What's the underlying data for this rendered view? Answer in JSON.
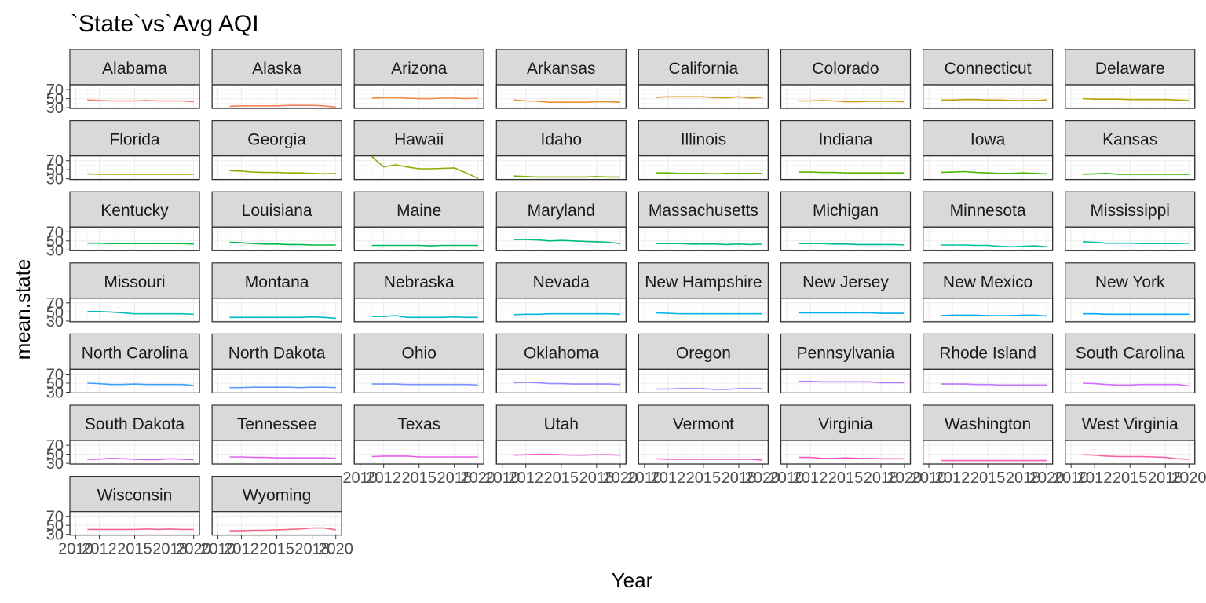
{
  "chart_data": {
    "type": "line",
    "title": "`State`vs`Avg AQI",
    "xlabel": "Year",
    "ylabel": "mean.state",
    "facet_layout": "8 columns, wrapped",
    "x_ticks": [
      2010,
      2012,
      2015,
      2018,
      2020
    ],
    "x_tick_labels": [
      "2010",
      "2012",
      "2015",
      "2018",
      "2020"
    ],
    "y_ticks": [
      30,
      50,
      70
    ],
    "y_tick_labels": [
      "30",
      "50",
      "70"
    ],
    "xlim": [
      2010,
      2020
    ],
    "ylim": [
      30,
      79
    ],
    "grid": true,
    "legend": "none",
    "x": [
      2011,
      2012,
      2013,
      2014,
      2015,
      2016,
      2017,
      2018,
      2019,
      2020
    ],
    "series": [
      {
        "name": "Alabama",
        "color": "#F8766D",
        "values": [
          47,
          46,
          45,
          45,
          45,
          46,
          45,
          45,
          45,
          43
        ]
      },
      {
        "name": "Alaska",
        "color": "#F57F5A",
        "values": [
          33,
          34,
          34,
          34,
          34,
          35,
          35,
          35,
          34,
          31
        ]
      },
      {
        "name": "Arizona",
        "color": "#EE8845",
        "values": [
          51,
          52,
          52,
          51,
          50,
          50,
          51,
          51,
          50,
          51
        ]
      },
      {
        "name": "Arkansas",
        "color": "#E58F2F",
        "values": [
          47,
          45,
          44,
          42,
          42,
          42,
          42,
          43,
          43,
          42
        ]
      },
      {
        "name": "California",
        "color": "#DB951F",
        "values": [
          53,
          54,
          54,
          54,
          54,
          52,
          52,
          54,
          51,
          53
        ]
      },
      {
        "name": "Colorado",
        "color": "#CF9B12",
        "values": [
          45,
          45,
          46,
          45,
          43,
          43,
          44,
          44,
          44,
          43
        ]
      },
      {
        "name": "Connecticut",
        "color": "#C3A00A",
        "values": [
          47,
          47,
          48,
          48,
          47,
          47,
          46,
          46,
          46,
          47
        ]
      },
      {
        "name": "Delaware",
        "color": "#B6A400",
        "values": [
          50,
          49,
          49,
          49,
          48,
          48,
          48,
          48,
          47,
          46
        ]
      },
      {
        "name": "Florida",
        "color": "#A8A800",
        "values": [
          41,
          40,
          40,
          40,
          40,
          40,
          40,
          40,
          40,
          40
        ]
      },
      {
        "name": "Georgia",
        "color": "#9AAB00",
        "values": [
          48,
          47,
          45,
          44,
          44,
          43,
          43,
          42,
          41,
          42
        ]
      },
      {
        "name": "Hawaii",
        "color": "#8BAE00",
        "values": [
          79,
          56,
          61,
          56,
          52,
          52,
          53,
          54,
          43,
          31
        ]
      },
      {
        "name": "Idaho",
        "color": "#7BB100",
        "values": [
          36,
          35,
          34,
          34,
          34,
          34,
          34,
          35,
          34,
          34
        ]
      },
      {
        "name": "Illinois",
        "color": "#6AB300",
        "values": [
          43,
          43,
          42,
          42,
          42,
          41,
          42,
          42,
          42,
          42
        ]
      },
      {
        "name": "Indiana",
        "color": "#58B500",
        "values": [
          45,
          45,
          44,
          44,
          43,
          43,
          43,
          43,
          43,
          43
        ]
      },
      {
        "name": "Iowa",
        "color": "#45B700",
        "values": [
          44,
          45,
          46,
          44,
          43,
          42,
          42,
          43,
          42,
          41
        ]
      },
      {
        "name": "Kansas",
        "color": "#2DB900",
        "values": [
          40,
          41,
          42,
          40,
          40,
          40,
          40,
          40,
          40,
          40
        ]
      },
      {
        "name": "Kentucky",
        "color": "#00BA38",
        "values": [
          45,
          45,
          44,
          44,
          44,
          44,
          44,
          44,
          44,
          43
        ]
      },
      {
        "name": "Louisiana",
        "color": "#00BB4E",
        "values": [
          47,
          46,
          44,
          43,
          43,
          42,
          42,
          41,
          41,
          41
        ]
      },
      {
        "name": "Maine",
        "color": "#00BC61",
        "values": [
          40,
          40,
          40,
          40,
          40,
          39,
          40,
          40,
          40,
          40
        ]
      },
      {
        "name": "Maryland",
        "color": "#00BD72",
        "values": [
          53,
          53,
          52,
          50,
          51,
          50,
          49,
          48,
          47,
          44
        ]
      },
      {
        "name": "Massachusetts",
        "color": "#00BE82",
        "values": [
          44,
          44,
          44,
          43,
          43,
          43,
          42,
          43,
          42,
          43
        ]
      },
      {
        "name": "Michigan",
        "color": "#00BF91",
        "values": [
          44,
          44,
          44,
          43,
          43,
          42,
          42,
          42,
          42,
          41
        ]
      },
      {
        "name": "Minnesota",
        "color": "#00C09F",
        "values": [
          41,
          41,
          41,
          40,
          40,
          38,
          37,
          38,
          39,
          37
        ]
      },
      {
        "name": "Mississippi",
        "color": "#00C0AC",
        "values": [
          48,
          47,
          45,
          45,
          45,
          44,
          44,
          44,
          44,
          45
        ]
      },
      {
        "name": "Missouri",
        "color": "#00BFB9",
        "values": [
          51,
          51,
          50,
          48,
          46,
          46,
          46,
          46,
          46,
          45
        ]
      },
      {
        "name": "Montana",
        "color": "#00BDC5",
        "values": [
          38,
          38,
          38,
          38,
          38,
          38,
          38,
          39,
          38,
          36
        ]
      },
      {
        "name": "Nebraska",
        "color": "#00BBD1",
        "values": [
          40,
          40,
          42,
          38,
          38,
          38,
          38,
          39,
          38,
          38
        ]
      },
      {
        "name": "Nevada",
        "color": "#00B8DC",
        "values": [
          44,
          45,
          45,
          46,
          46,
          46,
          46,
          46,
          46,
          45
        ]
      },
      {
        "name": "New Hampshire",
        "color": "#00B4E6",
        "values": [
          48,
          47,
          46,
          46,
          46,
          46,
          46,
          46,
          46,
          46
        ]
      },
      {
        "name": "New Jersey",
        "color": "#00B0F0",
        "values": [
          48,
          48,
          48,
          48,
          48,
          48,
          48,
          47,
          47,
          47
        ]
      },
      {
        "name": "New Mexico",
        "color": "#00ABF8",
        "values": [
          42,
          43,
          43,
          43,
          42,
          42,
          42,
          43,
          43,
          41
        ]
      },
      {
        "name": "New York",
        "color": "#00A5FF",
        "values": [
          46,
          46,
          45,
          45,
          45,
          45,
          45,
          45,
          45,
          45
        ]
      },
      {
        "name": "North Carolina",
        "color": "#3FA0FF",
        "values": [
          50,
          49,
          47,
          47,
          48,
          47,
          47,
          47,
          47,
          45
        ]
      },
      {
        "name": "North Dakota",
        "color": "#5F9AFF",
        "values": [
          40,
          40,
          41,
          41,
          41,
          41,
          40,
          41,
          41,
          40
        ]
      },
      {
        "name": "Ohio",
        "color": "#7A93FF",
        "values": [
          48,
          48,
          48,
          47,
          47,
          47,
          47,
          47,
          47,
          46
        ]
      },
      {
        "name": "Oklahoma",
        "color": "#918CFF",
        "values": [
          51,
          52,
          51,
          49,
          49,
          48,
          48,
          48,
          48,
          47
        ]
      },
      {
        "name": "Oregon",
        "color": "#A485FF",
        "values": [
          37,
          37,
          38,
          38,
          38,
          36,
          36,
          38,
          38,
          38
        ]
      },
      {
        "name": "Pennsylvania",
        "color": "#B47DFF",
        "values": [
          54,
          54,
          53,
          53,
          53,
          53,
          53,
          51,
          51,
          51
        ]
      },
      {
        "name": "Rhode Island",
        "color": "#C276FF",
        "values": [
          48,
          48,
          48,
          47,
          47,
          46,
          46,
          46,
          46,
          46
        ]
      },
      {
        "name": "South Carolina",
        "color": "#CE6FFF",
        "values": [
          50,
          49,
          47,
          46,
          46,
          47,
          47,
          47,
          47,
          44
        ]
      },
      {
        "name": "South Dakota",
        "color": "#D869F8",
        "values": [
          39,
          39,
          41,
          40,
          39,
          38,
          38,
          40,
          39,
          38
        ]
      },
      {
        "name": "Tennessee",
        "color": "#E164F0",
        "values": [
          44,
          44,
          43,
          43,
          42,
          42,
          42,
          42,
          42,
          41
        ]
      },
      {
        "name": "Texas",
        "color": "#E860E7",
        "values": [
          45,
          46,
          46,
          46,
          44,
          44,
          44,
          44,
          44,
          44
        ]
      },
      {
        "name": "Utah",
        "color": "#EE5DDC",
        "values": [
          48,
          49,
          50,
          50,
          49,
          48,
          48,
          49,
          49,
          48
        ]
      },
      {
        "name": "Vermont",
        "color": "#F35BD0",
        "values": [
          40,
          39,
          39,
          39,
          39,
          39,
          39,
          39,
          39,
          37
        ]
      },
      {
        "name": "Virginia",
        "color": "#F65BC3",
        "values": [
          43,
          43,
          41,
          41,
          42,
          41,
          41,
          40,
          40,
          40
        ]
      },
      {
        "name": "Washington",
        "color": "#F85BB5",
        "values": [
          36,
          36,
          36,
          36,
          36,
          36,
          36,
          36,
          36,
          36
        ]
      },
      {
        "name": "West Virginia",
        "color": "#F95EA6",
        "values": [
          49,
          48,
          46,
          45,
          45,
          45,
          44,
          43,
          40,
          39
        ]
      },
      {
        "name": "Wisconsin",
        "color": "#F96296",
        "values": [
          41,
          41,
          41,
          41,
          41,
          42,
          41,
          42,
          41,
          41
        ]
      },
      {
        "name": "Wyoming",
        "color": "#F86785",
        "values": [
          38,
          38,
          39,
          39,
          40,
          41,
          42,
          44,
          44,
          40
        ]
      }
    ]
  }
}
